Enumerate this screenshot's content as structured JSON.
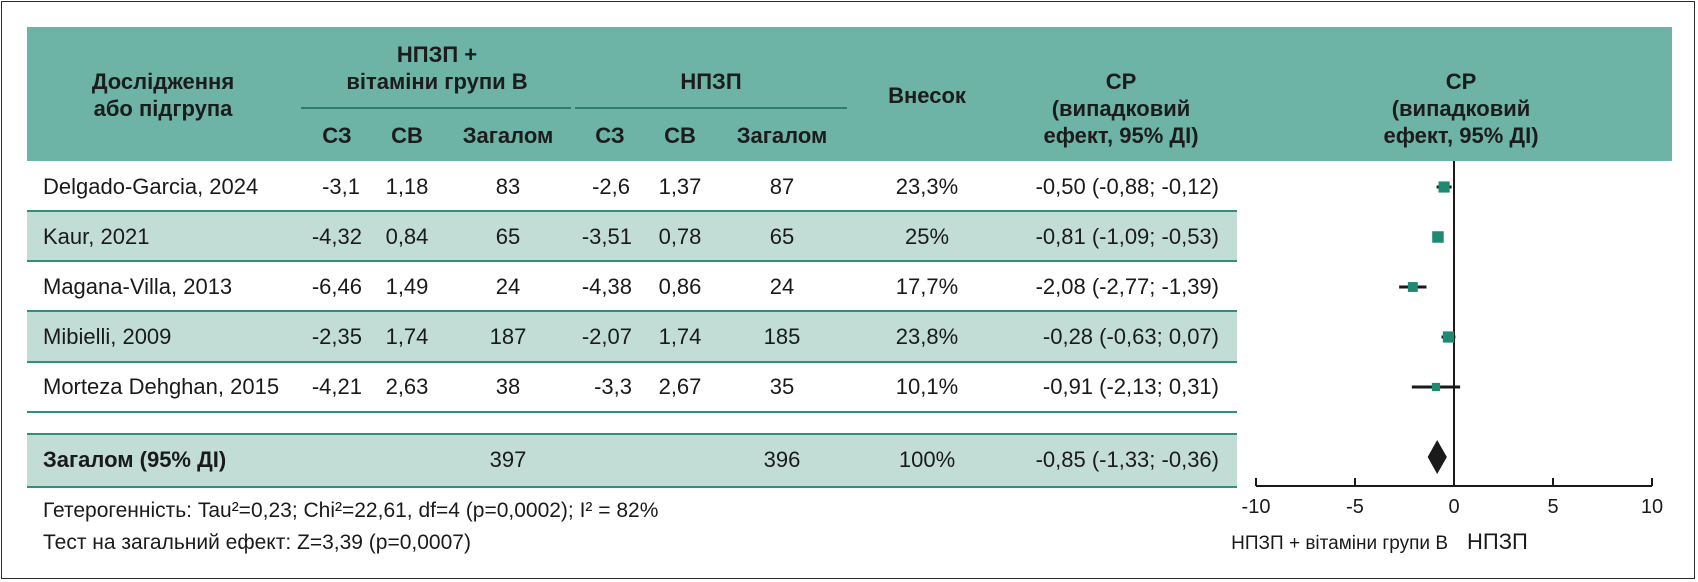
{
  "header": {
    "study_col": [
      "Дослідження",
      "або підгрупа"
    ],
    "group1": [
      "НПЗП +",
      "вітаміни групи В"
    ],
    "group2": "НПЗП",
    "weight": "Внесок",
    "sr_col": [
      "СР",
      "(випадковий",
      "ефект, 95% ДІ)"
    ],
    "plot_col": [
      "СР",
      "(випадковий",
      "ефект, 95% ДІ)"
    ],
    "sub": [
      "СЗ",
      "СВ",
      "Загалом",
      "СЗ",
      "СВ",
      "Загалом"
    ]
  },
  "rows": [
    {
      "study": "Delgado-Garcia, 2024",
      "m1": "-3,1",
      "sd1": "1,18",
      "n1": "83",
      "m2": "-2,6",
      "sd2": "1,37",
      "n2": "87",
      "weight": "23,3%",
      "ci": "-0,50 (-0,88; -0,12)"
    },
    {
      "study": "Kaur, 2021",
      "m1": "-4,32",
      "sd1": "0,84",
      "n1": "65",
      "m2": "-3,51",
      "sd2": "0,78",
      "n2": "65",
      "weight": "25%",
      "ci": "-0,81 (-1,09; -0,53)"
    },
    {
      "study": "Magana-Villa, 2013",
      "m1": "-6,46",
      "sd1": "1,49",
      "n1": "24",
      "m2": "-4,38",
      "sd2": "0,86",
      "n2": "24",
      "weight": "17,7%",
      "ci": "-2,08 (-2,77; -1,39)"
    },
    {
      "study": "Mibielli, 2009",
      "m1": "-2,35",
      "sd1": "1,74",
      "n1": "187",
      "m2": "-2,07",
      "sd2": "1,74",
      "n2": "185",
      "weight": "23,8%",
      "ci": "-0,28 (-0,63; 0,07)"
    },
    {
      "study": "Morteza Dehghan, 2015",
      "m1": "-4,21",
      "sd1": "2,63",
      "n1": "38",
      "m2": "-3,3",
      "sd2": "2,67",
      "n2": "35",
      "weight": "10,1%",
      "ci": "-0,91 (-2,13; 0,31)"
    }
  ],
  "total": {
    "label": "Загалом (95% ДІ)",
    "n1": "397",
    "n2": "396",
    "weight": "100%",
    "ci": "-0,85 (-1,33; -0,36)"
  },
  "footer": {
    "heterogeneity": "Гетерогенність: Tau²=0,23; Chi²=22,61, df=4 (p=0,0002); I² = 82%",
    "overall_test": "Тест на загальний ефект: Z=3,39 (p=0,0007)"
  },
  "colors": {
    "header_band": "#6db3a6",
    "alt_row": "#c2ddd5",
    "rule": "#2f8f7b",
    "marker": "#1f8a72"
  },
  "chart_data": {
    "type": "forest",
    "x_ticks": [
      "-10",
      "-5",
      "0",
      "5",
      "10"
    ],
    "xlim": [
      -10,
      10
    ],
    "favours_left": "НПЗП + вітаміни групи В",
    "favours_right": "НПЗП",
    "studies": [
      {
        "name": "Delgado-Garcia, 2024",
        "est": -0.5,
        "lo": -0.88,
        "hi": -0.12,
        "weight": 23.3
      },
      {
        "name": "Kaur, 2021",
        "est": -0.81,
        "lo": -1.09,
        "hi": -0.53,
        "weight": 25
      },
      {
        "name": "Magana-Villa, 2013",
        "est": -2.08,
        "lo": -2.77,
        "hi": -1.39,
        "weight": 17.7
      },
      {
        "name": "Mibielli, 2009",
        "est": -0.28,
        "lo": -0.63,
        "hi": 0.07,
        "weight": 23.8
      },
      {
        "name": "Morteza Dehghan, 2015",
        "est": -0.91,
        "lo": -2.13,
        "hi": 0.31,
        "weight": 10.1
      }
    ],
    "overall": {
      "est": -0.85,
      "lo": -1.33,
      "hi": -0.36
    }
  }
}
